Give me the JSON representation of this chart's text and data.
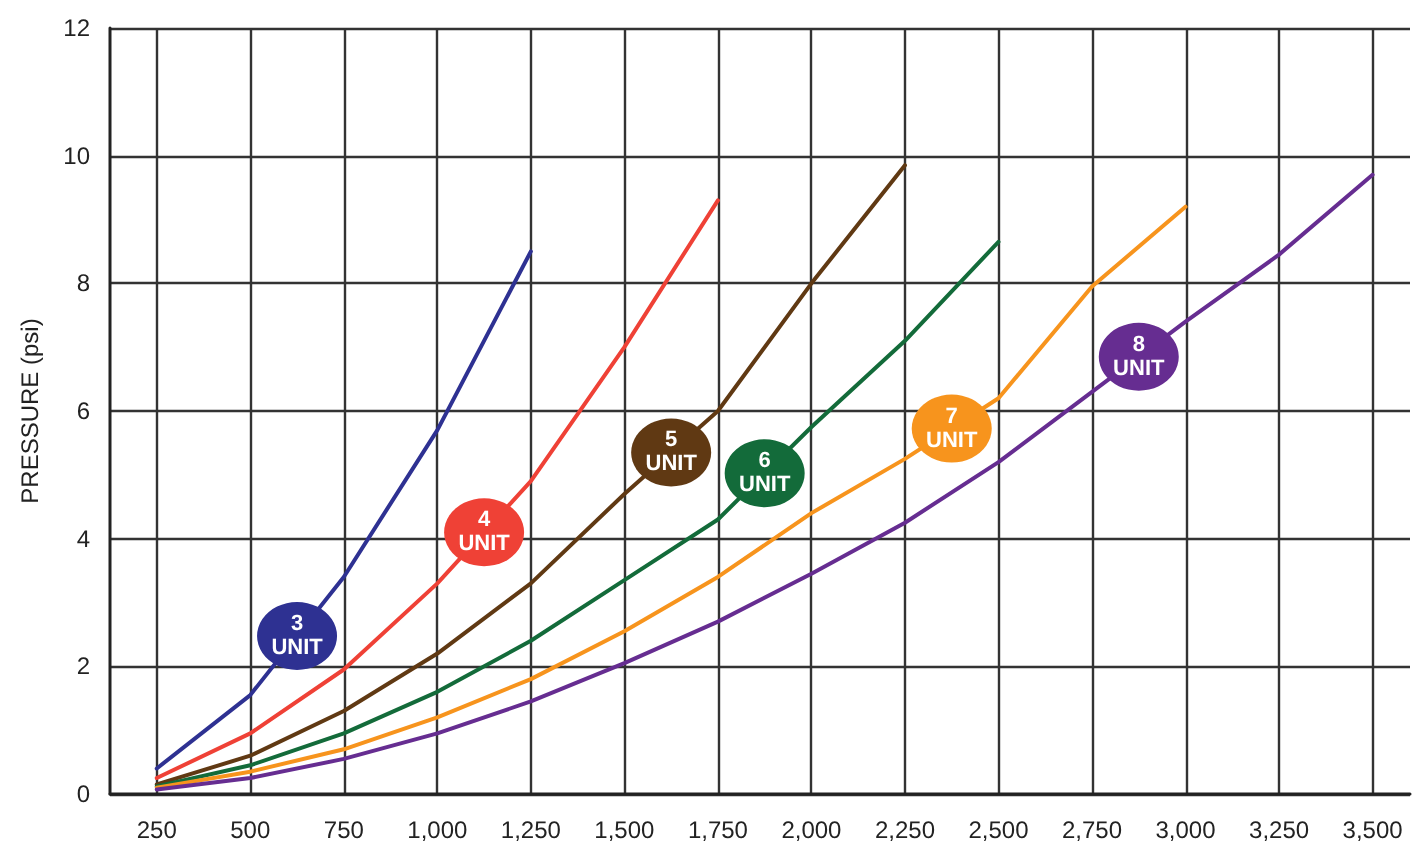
{
  "chart_data": {
    "type": "line",
    "ylabel": "PRESSURE (psi)",
    "x": [
      250,
      500,
      750,
      1000,
      1250,
      1500,
      1750,
      2000,
      2250,
      2500,
      2750,
      3000,
      3250,
      3500
    ],
    "xlim": [
      125,
      3600
    ],
    "xticks": [
      250,
      500,
      750,
      {
        "value": 1000,
        "label": "1,000"
      },
      {
        "value": 1250,
        "label": "1,250"
      },
      {
        "value": 1500,
        "label": "1,500"
      },
      {
        "value": 1750,
        "label": "1,750"
      },
      {
        "value": 2000,
        "label": "2,000"
      },
      {
        "value": 2250,
        "label": "2,250"
      },
      {
        "value": 2500,
        "label": "2,500"
      },
      {
        "value": 2750,
        "label": "2,750"
      },
      {
        "value": 3000,
        "label": "3,000"
      },
      {
        "value": 3250,
        "label": "3,250"
      },
      {
        "value": 3500,
        "label": "3,500"
      }
    ],
    "ylim": [
      0,
      12
    ],
    "yticks": [
      0,
      2,
      4,
      6,
      8,
      10,
      12
    ],
    "grid": true,
    "legend": false,
    "marker": "none",
    "line_style": "solid",
    "series": [
      {
        "name": "3 UNIT",
        "color": "#2e3192",
        "values": [
          0.4,
          1.55,
          3.4,
          5.7,
          8.5,
          null,
          null,
          null,
          null,
          null,
          null,
          null,
          null,
          null
        ]
      },
      {
        "name": "4 UNIT",
        "color": "#ef4136",
        "values": [
          0.25,
          0.95,
          1.95,
          3.3,
          4.9,
          7.0,
          9.3,
          null,
          null,
          null,
          null,
          null,
          null,
          null
        ]
      },
      {
        "name": "5 UNIT",
        "color": "#603913",
        "values": [
          0.15,
          0.6,
          1.3,
          2.2,
          3.3,
          4.7,
          6.0,
          8.0,
          9.85,
          null,
          null,
          null,
          null,
          null
        ]
      },
      {
        "name": "6 UNIT",
        "color": "#136b3a",
        "values": [
          0.12,
          0.45,
          0.95,
          1.6,
          2.4,
          3.35,
          4.3,
          5.75,
          7.1,
          8.65,
          null,
          null,
          null,
          null
        ]
      },
      {
        "name": "7 UNIT",
        "color": "#f7941d",
        "values": [
          0.1,
          0.35,
          0.7,
          1.2,
          1.8,
          2.55,
          3.4,
          4.4,
          5.25,
          6.2,
          7.95,
          9.2,
          null,
          null
        ]
      },
      {
        "name": "8 UNIT",
        "color": "#662d91",
        "values": [
          0.07,
          0.25,
          0.55,
          0.95,
          1.45,
          2.05,
          2.7,
          3.45,
          4.25,
          5.2,
          6.3,
          7.4,
          8.45,
          9.7
        ]
      }
    ]
  }
}
